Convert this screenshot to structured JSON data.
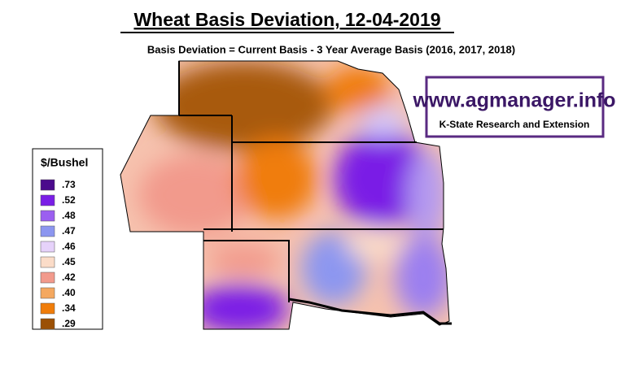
{
  "title": "Wheat Basis Deviation, 12-04-2019",
  "subtitle": "Basis Deviation = Current Basis - 3 Year Average Basis (2016, 2017, 2018)",
  "logo": {
    "url": "www.agmanager.info",
    "org": "K-State Research and Extension"
  },
  "legend": {
    "title": "$/Bushel",
    "items": [
      {
        "label": ".73",
        "color": "#4b0b8c"
      },
      {
        "label": ".52",
        "color": "#7a1ee6"
      },
      {
        "label": ".48",
        "color": "#9b5ff0"
      },
      {
        "label": ".47",
        "color": "#8c96f0"
      },
      {
        "label": ".46",
        "color": "#e6d2fa"
      },
      {
        "label": ".45",
        "color": "#fbdcc8"
      },
      {
        "label": ".42",
        "color": "#f29a8c"
      },
      {
        "label": ".40",
        "color": "#f4a860"
      },
      {
        "label": ".34",
        "color": "#f07d0a"
      },
      {
        "label": ".29",
        "color": "#9b5005"
      }
    ]
  }
}
